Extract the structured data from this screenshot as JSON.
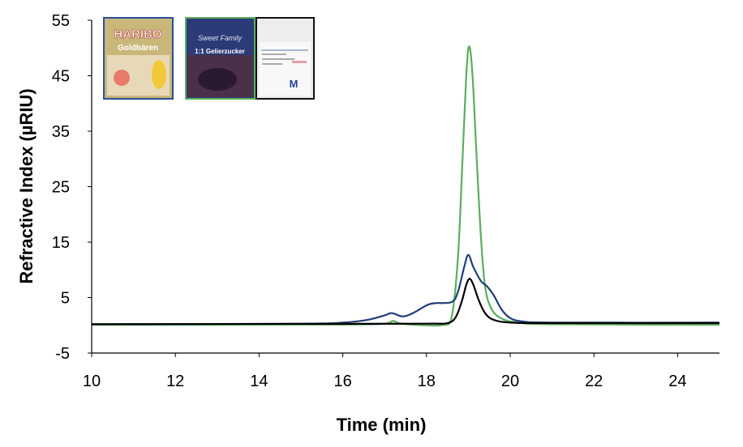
{
  "chart_data": {
    "type": "line",
    "xlabel": "Time (min)",
    "ylabel": "Refractive Index (µRIU)",
    "xlim": [
      10,
      25
    ],
    "ylim": [
      -5,
      55
    ],
    "xticks": [
      10,
      12,
      14,
      16,
      18,
      20,
      22,
      24
    ],
    "yticks": [
      -5,
      5,
      15,
      25,
      35,
      45,
      55
    ],
    "grid": false,
    "series": [
      {
        "color": "#5aae5c",
        "points": [
          [
            10,
            0.1
          ],
          [
            16,
            0.15
          ],
          [
            17.0,
            0.3
          ],
          [
            17.2,
            0.8
          ],
          [
            17.4,
            0.3
          ],
          [
            18.0,
            0.0
          ],
          [
            18.4,
            0.1
          ],
          [
            18.6,
            1.5
          ],
          [
            18.75,
            12
          ],
          [
            18.85,
            28
          ],
          [
            18.95,
            45
          ],
          [
            19.02,
            50.3
          ],
          [
            19.1,
            45
          ],
          [
            19.2,
            30
          ],
          [
            19.3,
            16
          ],
          [
            19.4,
            7
          ],
          [
            19.55,
            3
          ],
          [
            19.8,
            1.2
          ],
          [
            20.2,
            0.5
          ],
          [
            21,
            0.2
          ],
          [
            25,
            0.1
          ]
        ]
      },
      {
        "color": "#1f3f7a",
        "points": [
          [
            10,
            0.2
          ],
          [
            15,
            0.3
          ],
          [
            16,
            0.5
          ],
          [
            16.6,
            1.0
          ],
          [
            17.0,
            1.8
          ],
          [
            17.17,
            2.2
          ],
          [
            17.44,
            1.6
          ],
          [
            17.7,
            2.3
          ],
          [
            18.0,
            3.6
          ],
          [
            18.2,
            4.0
          ],
          [
            18.6,
            4.2
          ],
          [
            18.75,
            6
          ],
          [
            18.9,
            10.5
          ],
          [
            19.0,
            12.7
          ],
          [
            19.12,
            10.5
          ],
          [
            19.3,
            8
          ],
          [
            19.45,
            7.0
          ],
          [
            19.6,
            5.5
          ],
          [
            19.8,
            2.8
          ],
          [
            20.0,
            1.3
          ],
          [
            20.3,
            0.7
          ],
          [
            21,
            0.5
          ],
          [
            25,
            0.5
          ]
        ]
      },
      {
        "color": "#000000",
        "points": [
          [
            10,
            0.2
          ],
          [
            18,
            0.3
          ],
          [
            18.5,
            0.4
          ],
          [
            18.7,
            1.5
          ],
          [
            18.85,
            4.5
          ],
          [
            18.95,
            7.3
          ],
          [
            19.03,
            8.4
          ],
          [
            19.12,
            7.3
          ],
          [
            19.25,
            4.5
          ],
          [
            19.4,
            2.2
          ],
          [
            19.6,
            1.0
          ],
          [
            20,
            0.5
          ],
          [
            21,
            0.4
          ],
          [
            25,
            0.4
          ]
        ]
      }
    ],
    "insets": [
      {
        "border": "#2a4f9a",
        "logo": "HARIBO",
        "sub": "Goldbären"
      },
      {
        "border": "#5aae5c",
        "logo": "Sweet Family",
        "sub": "1:1 Gelierzucker"
      },
      {
        "border": "#111111",
        "logo": "M",
        "sub": ""
      }
    ]
  }
}
